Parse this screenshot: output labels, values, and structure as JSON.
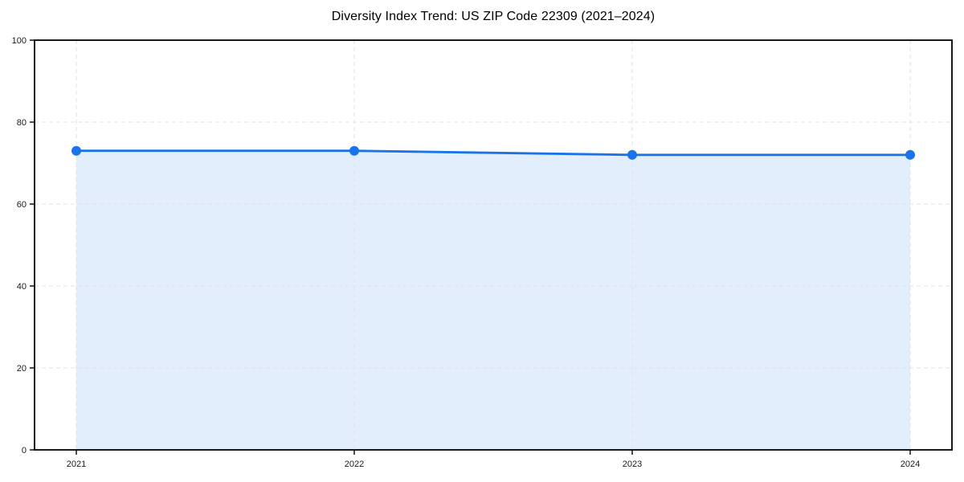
{
  "chart_data": {
    "type": "area",
    "title": "Diversity Index Trend: US ZIP Code 22309 (2021–2024)",
    "x": [
      "2021",
      "2022",
      "2023",
      "2024"
    ],
    "series": [
      {
        "name": "Diversity Index",
        "values": [
          73,
          73,
          72,
          72
        ]
      }
    ],
    "xlabel": "",
    "ylabel": "",
    "ylim": [
      0,
      100
    ],
    "yticks": [
      0,
      20,
      40,
      60,
      80,
      100
    ],
    "grid": true,
    "grid_style": "dashed",
    "legend": "none",
    "marker": "circle",
    "colors": {
      "line": "#1a73e8",
      "marker": "#1a73e8",
      "fill": "#1a73e8",
      "fill_opacity": 0.12,
      "grid": "#e2e2e2",
      "axis": "#000000",
      "tick_label": "#1a1a1a",
      "title": "#000000"
    }
  }
}
